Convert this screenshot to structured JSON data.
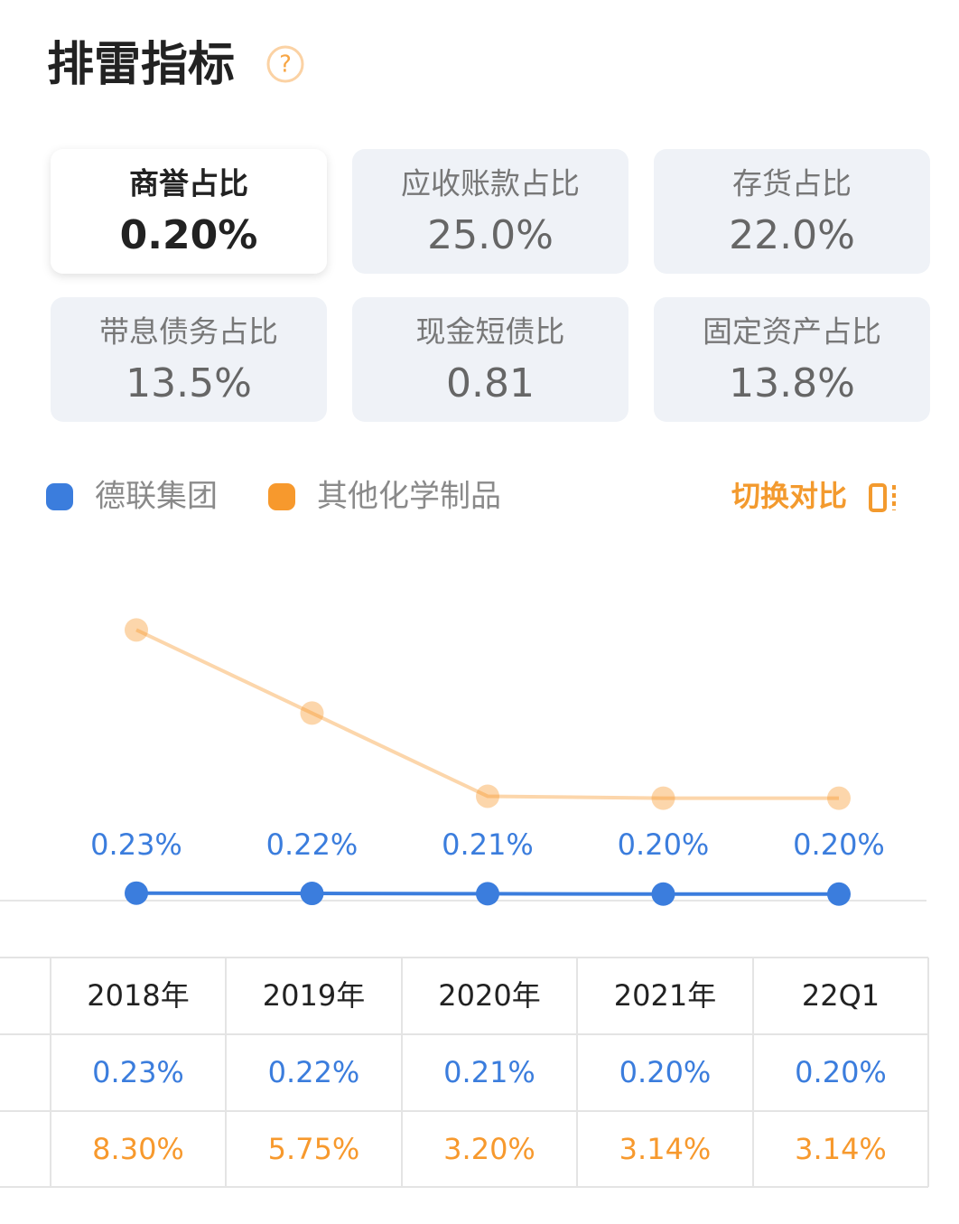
{
  "header": {
    "title": "排雷指标",
    "help": "?"
  },
  "cards": [
    {
      "label": "商誉占比",
      "value": "0.20%"
    },
    {
      "label": "应收账款占比",
      "value": "25.0%"
    },
    {
      "label": "存货占比",
      "value": "22.0%"
    },
    {
      "label": "带息债务占比",
      "value": "13.5%"
    },
    {
      "label": "现金短债比",
      "value": "0.81"
    },
    {
      "label": "固定资产占比",
      "value": "13.8%"
    }
  ],
  "toggle": "切换对比",
  "chart_data": {
    "type": "line",
    "categories": [
      "2018年",
      "2019年",
      "2020年",
      "2021年",
      "22Q1"
    ],
    "series": [
      {
        "name": "德联集团",
        "color": "#3b7ddd",
        "values": [
          0.23,
          0.22,
          0.21,
          0.2,
          0.2
        ],
        "value_labels": [
          "0.23%",
          "0.22%",
          "0.21%",
          "0.20%",
          "0.20%"
        ]
      },
      {
        "name": "其他化学制品",
        "color": "#f7992d",
        "values": [
          8.3,
          5.75,
          3.2,
          3.14,
          3.14
        ],
        "value_labels": [
          "8.30%",
          "5.75%",
          "3.20%",
          "3.14%",
          "3.14%"
        ]
      }
    ],
    "ylim": [
      0,
      10
    ]
  }
}
